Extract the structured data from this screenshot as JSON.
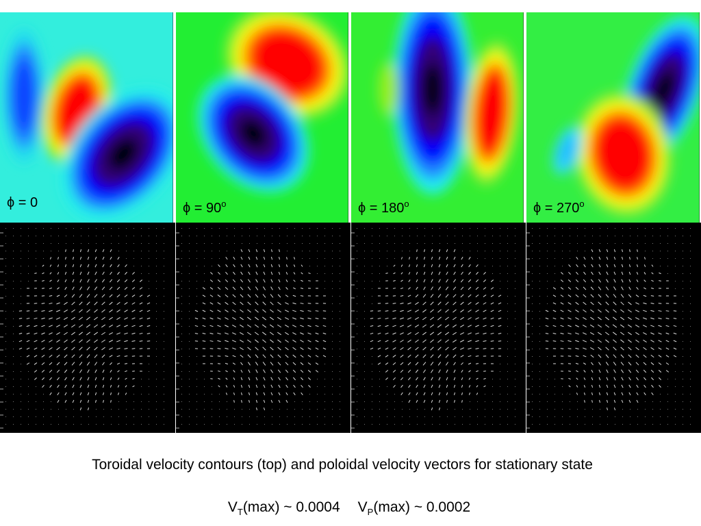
{
  "panels": [
    {
      "label": "ϕ = 0"
    },
    {
      "label": "ϕ = 90",
      "sup": "o"
    },
    {
      "label": "ϕ = 180",
      "sup": "o"
    },
    {
      "label": "ϕ = 270",
      "sup": "o"
    }
  ],
  "caption": "Toroidal velocity contours (top) and poloidal velocity vectors for stationary state",
  "max_values": [
    {
      "symbol": "V",
      "sub": "T",
      "text": "(max) ~ 0.0004"
    },
    {
      "symbol": "V",
      "sub": "P",
      "text": "(max) ~ 0.0002"
    }
  ]
}
